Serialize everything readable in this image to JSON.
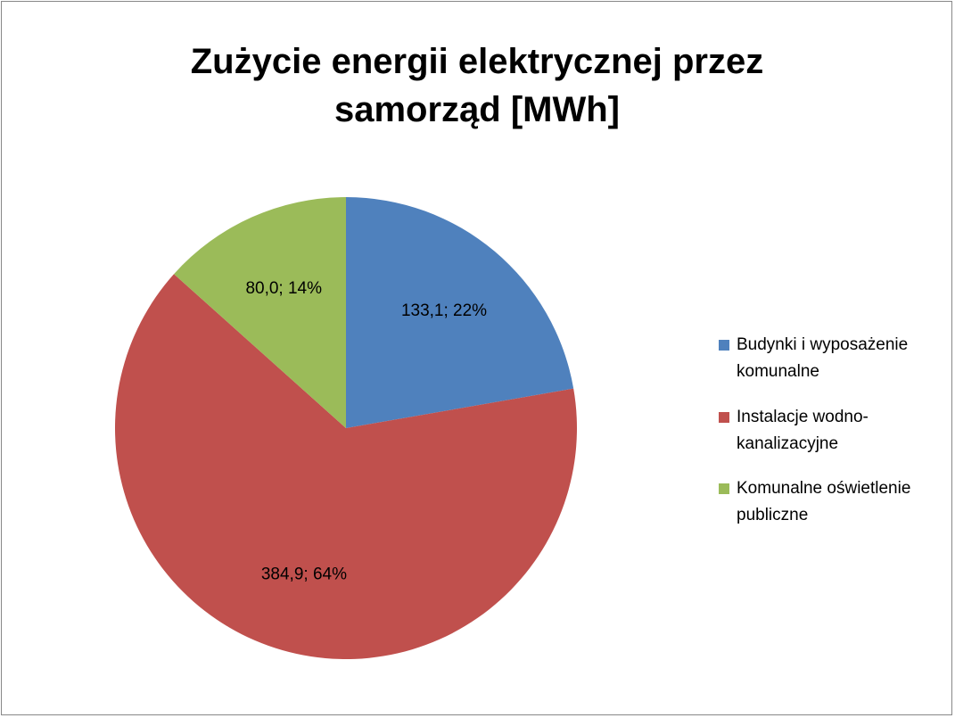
{
  "chart_data": {
    "type": "pie",
    "title": "Zużycie energii elektrycznej przez samorząd [MWh]",
    "categories": [
      "Budynki i wyposażenie komunalne",
      "Instalacje wodno-kanalizacyjne",
      "Komunalne oświetlenie publiczne"
    ],
    "values": [
      133.1,
      384.9,
      80.0
    ],
    "value_labels": [
      "133,1; 22%",
      "384,9; 64%",
      "80,0; 14%"
    ],
    "colors": [
      "#4f81bd",
      "#c0504d",
      "#9bbb59"
    ],
    "legend": "right"
  }
}
